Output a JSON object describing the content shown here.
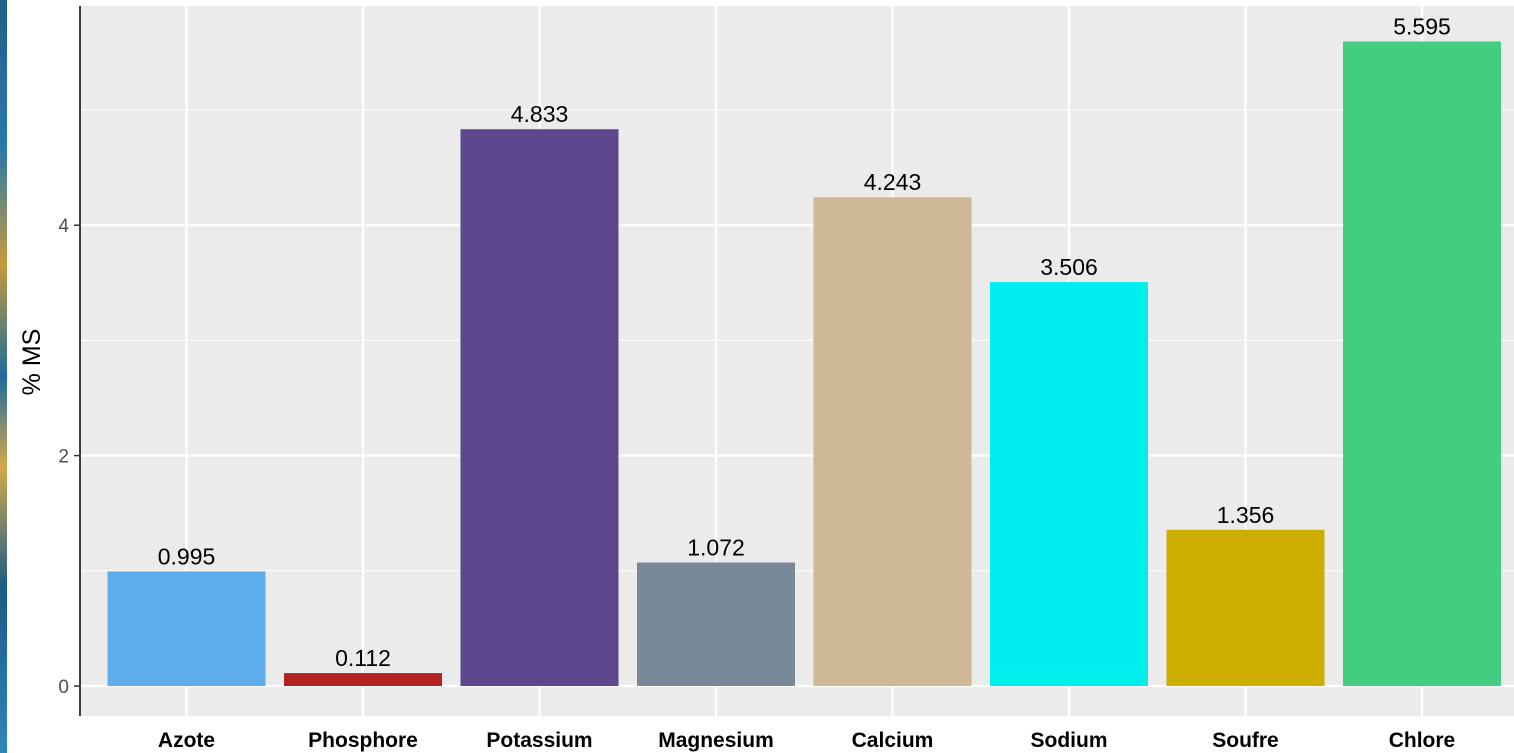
{
  "chart_data": {
    "type": "bar",
    "title": "",
    "xlabel": "",
    "ylabel": "% MS",
    "categories": [
      "Azote",
      "Phosphore",
      "Potassium",
      "Magnesium",
      "Calcium",
      "Sodium",
      "Soufre",
      "Chlore"
    ],
    "values": [
      0.995,
      0.112,
      4.833,
      1.072,
      4.243,
      3.506,
      1.356,
      5.595
    ],
    "value_labels": [
      "0.995",
      "0.112",
      "4.833",
      "1.072",
      "4.243",
      "3.506",
      "1.356",
      "5.595"
    ],
    "colors": [
      "#5DADEC",
      "#B22222",
      "#5E478C",
      "#778899",
      "#CFB995",
      "#00EEEE",
      "#CDAD00",
      "#43CD80"
    ],
    "y_ticks": [
      0,
      2,
      4
    ],
    "y_tick_labels": [
      "0",
      "2",
      "4"
    ],
    "ylim": [
      -0.25,
      5.9
    ],
    "grid": true,
    "panel_background": "#EBEBEB",
    "legend": "none"
  }
}
